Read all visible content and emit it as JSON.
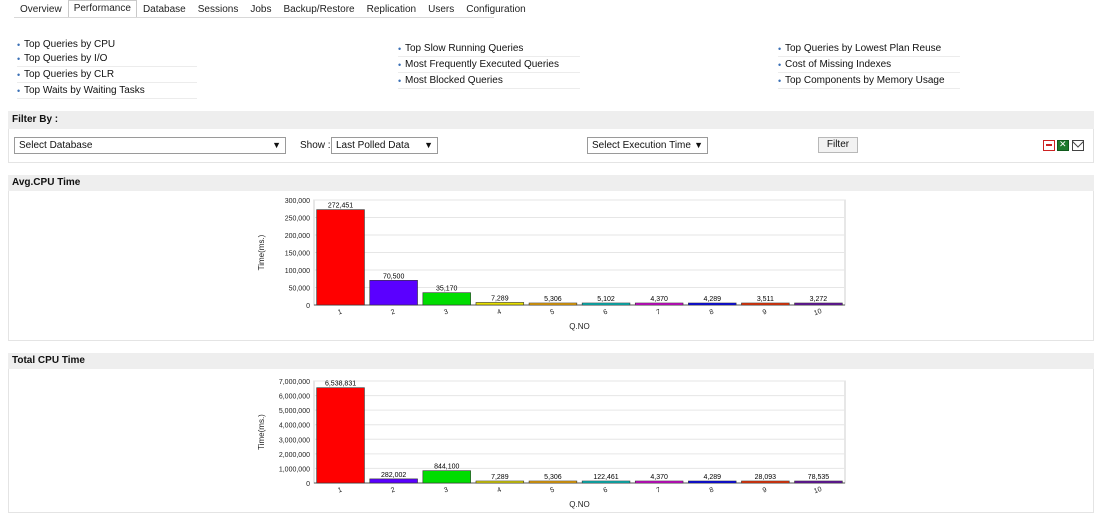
{
  "tabs": [
    "Overview",
    "Performance",
    "Database",
    "Sessions",
    "Jobs",
    "Backup/Restore",
    "Replication",
    "Users",
    "Configuration"
  ],
  "active_tab": "Performance",
  "links": {
    "col1": [
      "Top Queries by CPU",
      "Top Queries by I/O",
      "Top Queries by CLR",
      "Top Waits by Waiting Tasks"
    ],
    "col2": [
      "Top Slow Running Queries",
      "Most Frequently Executed Queries",
      "Most Blocked Queries"
    ],
    "col3": [
      "Top Queries by Lowest Plan Reuse",
      "Cost of Missing Indexes",
      "Top Components by Memory Usage"
    ]
  },
  "filter": {
    "title": "Filter By :",
    "database_select": "Select Database",
    "show_label": "Show :",
    "show_select": "Last Polled Data",
    "exec_select": "Select Execution Time",
    "filter_button": "Filter"
  },
  "icons": [
    "pdf-export-icon",
    "excel-export-icon",
    "email-icon"
  ],
  "colors": [
    "#ff0000",
    "#5a00ff",
    "#00dd00",
    "#e8e000",
    "#ffb000",
    "#00c8c8",
    "#e000e0",
    "#0000ff",
    "#ff3300",
    "#6a0dad"
  ],
  "chart_data": [
    {
      "type": "bar",
      "title": "Avg.CPU Time",
      "xlabel": "Q.NO",
      "ylabel": "Time(ms.)",
      "categories": [
        "1",
        "2",
        "3",
        "4",
        "5",
        "6",
        "7",
        "8",
        "9",
        "10"
      ],
      "values": [
        272451,
        70500,
        35170,
        7289,
        5306,
        5102,
        4370,
        4289,
        3511,
        3272
      ],
      "data_labels": [
        "272,451",
        "70,500",
        "35,170",
        "7,289",
        "5,306",
        "5,102",
        "4,370",
        "4,289",
        "3,511",
        "3,272"
      ],
      "yticks": [
        "0",
        "50,000",
        "100,000",
        "150,000",
        "200,000",
        "250,000",
        "300,000"
      ],
      "ylim": [
        0,
        300000
      ],
      "grid": true
    },
    {
      "type": "bar",
      "title": "Total CPU Time",
      "xlabel": "Q.NO",
      "ylabel": "Time(ms.)",
      "categories": [
        "1",
        "2",
        "3",
        "4",
        "5",
        "6",
        "7",
        "8",
        "9",
        "10"
      ],
      "values": [
        6538831,
        282002,
        844100,
        7289,
        5306,
        122461,
        4370,
        4289,
        28093,
        78535
      ],
      "data_labels": [
        "6,538,831",
        "282,002",
        "844,100",
        "7,289",
        "5,306",
        "122,461",
        "4,370",
        "4,289",
        "28,093",
        "78,535"
      ],
      "yticks": [
        "0",
        "1,000,000",
        "2,000,000",
        "3,000,000",
        "4,000,000",
        "5,000,000",
        "6,000,000",
        "7,000,000"
      ],
      "ylim": [
        0,
        7000000
      ],
      "grid": true
    }
  ]
}
